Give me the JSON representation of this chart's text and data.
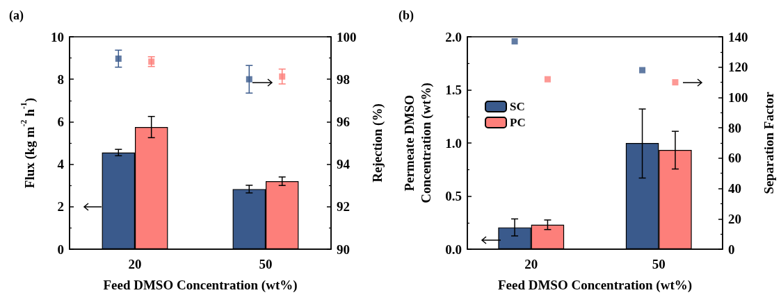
{
  "chart_data": [
    {
      "type": "bar",
      "title": "(a)",
      "xlabel": "Feed DMSO Concentration (wt%)",
      "ylabel": "Flux (kg m$^{-2}$ h$^{-1}$)",
      "y2label": "Rejection (%)",
      "categories": [
        "20",
        "50"
      ],
      "ylim": [
        0,
        10
      ],
      "yticks": [
        0,
        2,
        4,
        6,
        8,
        10
      ],
      "y2lim": [
        90,
        100
      ],
      "y2ticks": [
        90,
        92,
        94,
        96,
        98,
        100
      ],
      "grid": false,
      "legend": false,
      "marker": "square",
      "series": [
        {
          "color": "#3a5a8c",
          "values": [
            4.55,
            2.83
          ],
          "errors": [
            0.15,
            0.18
          ]
        },
        {
          "color": "#fd7f7a",
          "values": [
            5.75,
            3.2
          ],
          "errors": [
            0.5,
            0.2
          ]
        },
        {
          "type": "scatter",
          "axis": "y2",
          "color": "#3a5a8c",
          "x": [
            "20",
            "50"
          ],
          "values": [
            98.97,
            98.0
          ],
          "errors": [
            0.4,
            0.65
          ]
        },
        {
          "type": "scatter",
          "axis": "y2",
          "color": "#fd7f7a",
          "x": [
            "20",
            "50"
          ],
          "values": [
            98.83,
            98.13
          ],
          "errors": [
            0.23,
            0.35
          ]
        }
      ]
    },
    {
      "type": "bar",
      "title": "(b)",
      "xlabel": "Feed DMSO Concentration (wt%)",
      "ylabel": "Permeate DMSO\nConcentration (wt%)",
      "y2label": "Separation Factor",
      "categories": [
        "20",
        "50"
      ],
      "ylim": [
        0,
        2
      ],
      "yticks": [
        {
          "value": 0,
          "label": "0.0"
        },
        {
          "value": 0.5,
          "label": "0.5"
        },
        {
          "value": 1,
          "label": "1.0"
        },
        {
          "value": 1.5,
          "label": "1.5"
        },
        {
          "value": 2,
          "label": "2.0"
        }
      ],
      "y2lim": [
        0,
        140
      ],
      "y2ticks": [
        0,
        20,
        40,
        60,
        80,
        100,
        120,
        140
      ],
      "grid": false,
      "legend": "center left",
      "marker": "square",
      "series": [
        {
          "name": "SC",
          "color": "#3a5a8c",
          "values": [
            0.205,
            1.0
          ],
          "errors": [
            [
              0.125,
              0.285
            ],
            [
              0.67,
              1.32
            ]
          ]
        },
        {
          "name": "PC",
          "color": "#fd7f7a",
          "values": [
            0.23,
            0.935
          ],
          "errors": [
            [
              0.185,
              0.275
            ],
            [
              0.755,
              1.11
            ]
          ]
        },
        {
          "type": "scatter",
          "axis": "y2",
          "color": "#3a5a8c",
          "x": [
            "20",
            "50"
          ],
          "values": [
            137,
            118
          ]
        },
        {
          "type": "scatter",
          "axis": "y2",
          "color": "#fd7f7a",
          "x": [
            "20",
            "50"
          ],
          "values": [
            112,
            110
          ]
        }
      ]
    }
  ]
}
